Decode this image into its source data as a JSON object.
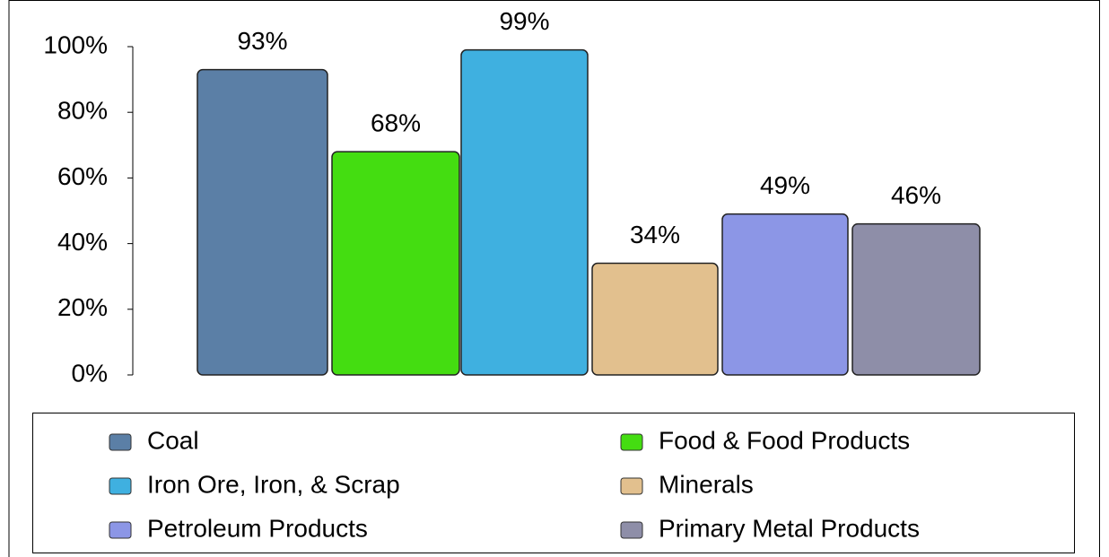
{
  "chart_data": {
    "type": "bar",
    "categories": [
      "Coal",
      "Food & Food Products",
      "Iron Ore, Iron, & Scrap",
      "Minerals",
      "Petroleum Products",
      "Primary Metal Products"
    ],
    "values": [
      93,
      68,
      99,
      34,
      49,
      46
    ],
    "value_labels": [
      "93%",
      "68%",
      "99%",
      "34%",
      "49%",
      "46%"
    ],
    "colors": [
      "#5b7fa6",
      "#44dd11",
      "#3fb0e0",
      "#e2c08e",
      "#8c96e6",
      "#8e8ea8"
    ],
    "ylim": [
      0,
      100
    ],
    "yticks": [
      {
        "value": 0,
        "label": "0%"
      },
      {
        "value": 20,
        "label": "20%"
      },
      {
        "value": 40,
        "label": "40%"
      },
      {
        "value": 60,
        "label": "60%"
      },
      {
        "value": 80,
        "label": "80%"
      },
      {
        "value": 100,
        "label": "100%"
      }
    ],
    "legend": "bottom"
  }
}
